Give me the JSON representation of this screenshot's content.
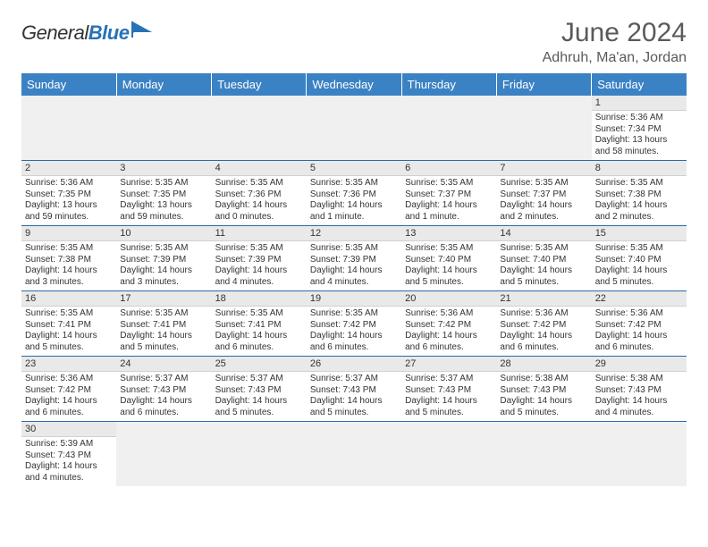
{
  "brand": {
    "text1": "General",
    "text2": "Blue"
  },
  "title": "June 2024",
  "location": "Adhruh, Ma'an, Jordan",
  "colors": {
    "header_bg": "#3b82c4",
    "header_text": "#ffffff",
    "daynum_bg": "#e9e9e9",
    "empty_bg": "#f0f0f0",
    "row_divider": "#2a6aa8",
    "text": "#333333",
    "title_color": "#5a5a5a"
  },
  "daysOfWeek": [
    "Sunday",
    "Monday",
    "Tuesday",
    "Wednesday",
    "Thursday",
    "Friday",
    "Saturday"
  ],
  "weeks": [
    [
      null,
      null,
      null,
      null,
      null,
      null,
      {
        "n": "1",
        "sunrise": "Sunrise: 5:36 AM",
        "sunset": "Sunset: 7:34 PM",
        "daylight": "Daylight: 13 hours and 58 minutes."
      }
    ],
    [
      {
        "n": "2",
        "sunrise": "Sunrise: 5:36 AM",
        "sunset": "Sunset: 7:35 PM",
        "daylight": "Daylight: 13 hours and 59 minutes."
      },
      {
        "n": "3",
        "sunrise": "Sunrise: 5:35 AM",
        "sunset": "Sunset: 7:35 PM",
        "daylight": "Daylight: 13 hours and 59 minutes."
      },
      {
        "n": "4",
        "sunrise": "Sunrise: 5:35 AM",
        "sunset": "Sunset: 7:36 PM",
        "daylight": "Daylight: 14 hours and 0 minutes."
      },
      {
        "n": "5",
        "sunrise": "Sunrise: 5:35 AM",
        "sunset": "Sunset: 7:36 PM",
        "daylight": "Daylight: 14 hours and 1 minute."
      },
      {
        "n": "6",
        "sunrise": "Sunrise: 5:35 AM",
        "sunset": "Sunset: 7:37 PM",
        "daylight": "Daylight: 14 hours and 1 minute."
      },
      {
        "n": "7",
        "sunrise": "Sunrise: 5:35 AM",
        "sunset": "Sunset: 7:37 PM",
        "daylight": "Daylight: 14 hours and 2 minutes."
      },
      {
        "n": "8",
        "sunrise": "Sunrise: 5:35 AM",
        "sunset": "Sunset: 7:38 PM",
        "daylight": "Daylight: 14 hours and 2 minutes."
      }
    ],
    [
      {
        "n": "9",
        "sunrise": "Sunrise: 5:35 AM",
        "sunset": "Sunset: 7:38 PM",
        "daylight": "Daylight: 14 hours and 3 minutes."
      },
      {
        "n": "10",
        "sunrise": "Sunrise: 5:35 AM",
        "sunset": "Sunset: 7:39 PM",
        "daylight": "Daylight: 14 hours and 3 minutes."
      },
      {
        "n": "11",
        "sunrise": "Sunrise: 5:35 AM",
        "sunset": "Sunset: 7:39 PM",
        "daylight": "Daylight: 14 hours and 4 minutes."
      },
      {
        "n": "12",
        "sunrise": "Sunrise: 5:35 AM",
        "sunset": "Sunset: 7:39 PM",
        "daylight": "Daylight: 14 hours and 4 minutes."
      },
      {
        "n": "13",
        "sunrise": "Sunrise: 5:35 AM",
        "sunset": "Sunset: 7:40 PM",
        "daylight": "Daylight: 14 hours and 5 minutes."
      },
      {
        "n": "14",
        "sunrise": "Sunrise: 5:35 AM",
        "sunset": "Sunset: 7:40 PM",
        "daylight": "Daylight: 14 hours and 5 minutes."
      },
      {
        "n": "15",
        "sunrise": "Sunrise: 5:35 AM",
        "sunset": "Sunset: 7:40 PM",
        "daylight": "Daylight: 14 hours and 5 minutes."
      }
    ],
    [
      {
        "n": "16",
        "sunrise": "Sunrise: 5:35 AM",
        "sunset": "Sunset: 7:41 PM",
        "daylight": "Daylight: 14 hours and 5 minutes."
      },
      {
        "n": "17",
        "sunrise": "Sunrise: 5:35 AM",
        "sunset": "Sunset: 7:41 PM",
        "daylight": "Daylight: 14 hours and 5 minutes."
      },
      {
        "n": "18",
        "sunrise": "Sunrise: 5:35 AM",
        "sunset": "Sunset: 7:41 PM",
        "daylight": "Daylight: 14 hours and 6 minutes."
      },
      {
        "n": "19",
        "sunrise": "Sunrise: 5:35 AM",
        "sunset": "Sunset: 7:42 PM",
        "daylight": "Daylight: 14 hours and 6 minutes."
      },
      {
        "n": "20",
        "sunrise": "Sunrise: 5:36 AM",
        "sunset": "Sunset: 7:42 PM",
        "daylight": "Daylight: 14 hours and 6 minutes."
      },
      {
        "n": "21",
        "sunrise": "Sunrise: 5:36 AM",
        "sunset": "Sunset: 7:42 PM",
        "daylight": "Daylight: 14 hours and 6 minutes."
      },
      {
        "n": "22",
        "sunrise": "Sunrise: 5:36 AM",
        "sunset": "Sunset: 7:42 PM",
        "daylight": "Daylight: 14 hours and 6 minutes."
      }
    ],
    [
      {
        "n": "23",
        "sunrise": "Sunrise: 5:36 AM",
        "sunset": "Sunset: 7:42 PM",
        "daylight": "Daylight: 14 hours and 6 minutes."
      },
      {
        "n": "24",
        "sunrise": "Sunrise: 5:37 AM",
        "sunset": "Sunset: 7:43 PM",
        "daylight": "Daylight: 14 hours and 6 minutes."
      },
      {
        "n": "25",
        "sunrise": "Sunrise: 5:37 AM",
        "sunset": "Sunset: 7:43 PM",
        "daylight": "Daylight: 14 hours and 5 minutes."
      },
      {
        "n": "26",
        "sunrise": "Sunrise: 5:37 AM",
        "sunset": "Sunset: 7:43 PM",
        "daylight": "Daylight: 14 hours and 5 minutes."
      },
      {
        "n": "27",
        "sunrise": "Sunrise: 5:37 AM",
        "sunset": "Sunset: 7:43 PM",
        "daylight": "Daylight: 14 hours and 5 minutes."
      },
      {
        "n": "28",
        "sunrise": "Sunrise: 5:38 AM",
        "sunset": "Sunset: 7:43 PM",
        "daylight": "Daylight: 14 hours and 5 minutes."
      },
      {
        "n": "29",
        "sunrise": "Sunrise: 5:38 AM",
        "sunset": "Sunset: 7:43 PM",
        "daylight": "Daylight: 14 hours and 4 minutes."
      }
    ],
    [
      {
        "n": "30",
        "sunrise": "Sunrise: 5:39 AM",
        "sunset": "Sunset: 7:43 PM",
        "daylight": "Daylight: 14 hours and 4 minutes."
      },
      null,
      null,
      null,
      null,
      null,
      null
    ]
  ]
}
